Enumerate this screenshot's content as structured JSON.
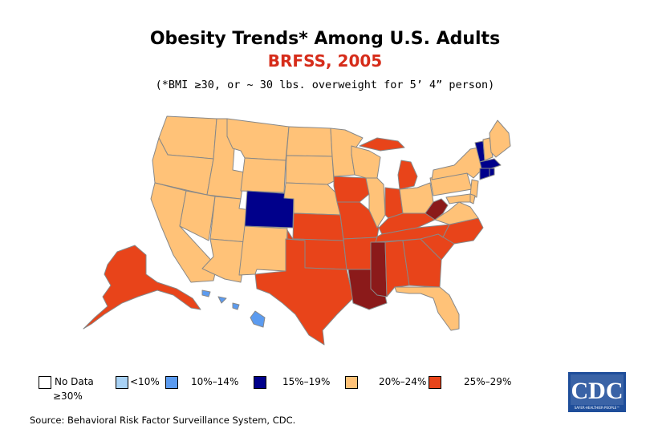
{
  "title": "Obesity Trends* Among U.S. Adults",
  "subtitle": "BRFSS, 2005",
  "footnote": "(*BMI ≥30, or ~ 30 lbs. overweight for 5’ 4” person)",
  "colors": {
    "no_data": "#ffffff",
    "lt10": "#a9d2f5",
    "r10_14": "#5b9bf0",
    "r15_19": "#00008b",
    "r20_24": "#ffc278",
    "r25_29": "#e8441a",
    "ge30": "#8b1a1a",
    "border": "#888888"
  },
  "legend": [
    {
      "label": "No Data",
      "color_key": "no_data"
    },
    {
      "label": "<10%",
      "color_key": "lt10"
    },
    {
      "label": "10%–14%",
      "color_key": "r10_14"
    },
    {
      "label": "15%–19%",
      "color_key": "r15_19"
    },
    {
      "label": "20%–24%",
      "color_key": "r20_24"
    },
    {
      "label": "25%–29%",
      "color_key": "r25_29"
    },
    {
      "label": "≥30%",
      "color_key": "ge30"
    }
  ],
  "source": "Source: Behavioral Risk Factor Surveillance System, CDC.",
  "logo": {
    "text": "CDC",
    "tagline": "SAFER·HEALTHIER·PEOPLE™"
  }
}
